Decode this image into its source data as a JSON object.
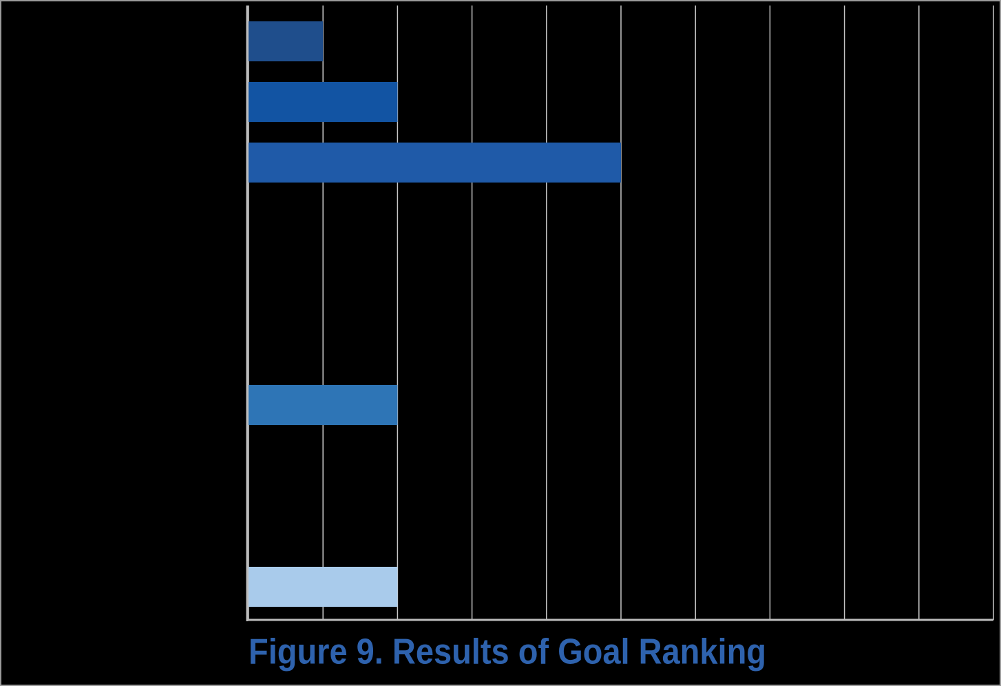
{
  "chart_data": {
    "type": "barh",
    "title": "Figure 9. Results of Goal Ranking",
    "categories": [
      null,
      null,
      null,
      null,
      null,
      null,
      null,
      null,
      null,
      null
    ],
    "values": [
      1,
      2,
      5,
      0,
      0,
      0,
      2,
      0,
      0,
      2
    ],
    "colors": [
      "#1f4e8c",
      "#1254a3",
      "#1f5aa8",
      "#1f5aa8",
      "#1f5aa8",
      "#1f5aa8",
      "#2e75b6",
      "#5a9bd5",
      "#5a9bd5",
      "#a9cbeb"
    ],
    "xlim": [
      0,
      10
    ],
    "xticks": [
      0,
      1,
      2,
      3,
      4,
      5,
      6,
      7,
      8,
      9,
      10
    ],
    "grid": true
  }
}
